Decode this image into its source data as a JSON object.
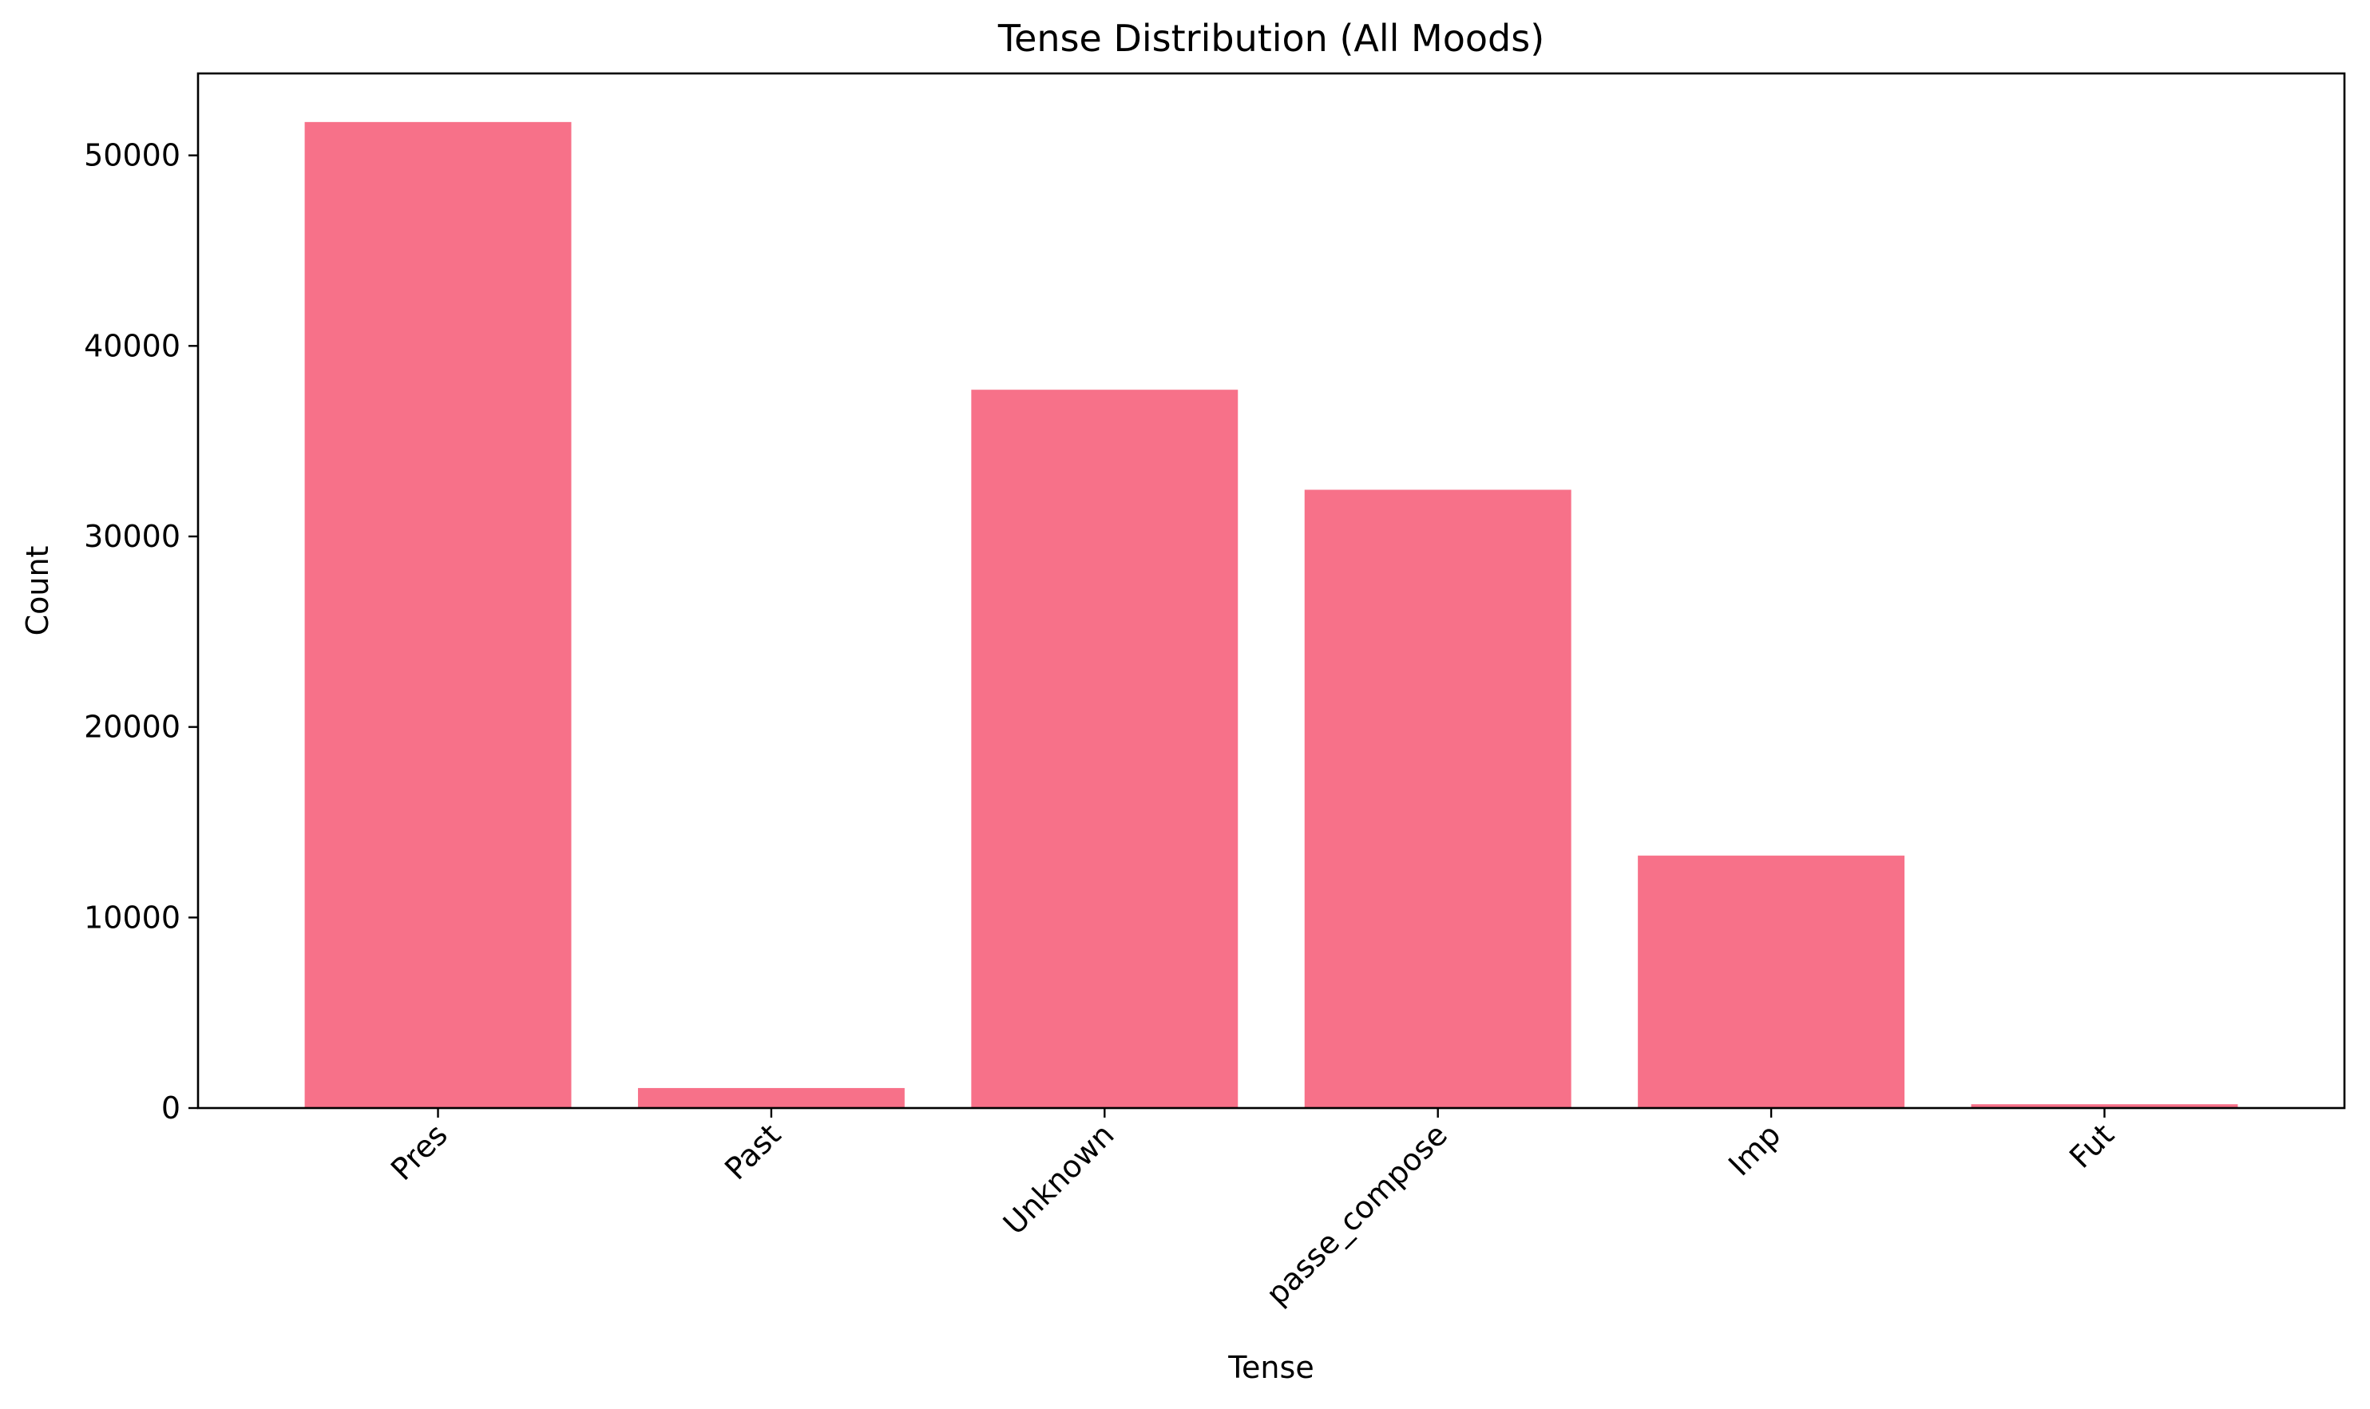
{
  "chart_data": {
    "type": "bar",
    "title": "Tense Distribution (All Moods)",
    "xlabel": "Tense",
    "ylabel": "Count",
    "categories": [
      "Pres",
      "Past",
      "Unknown",
      "passe_compose",
      "Imp",
      "Fut"
    ],
    "values": [
      51750,
      1050,
      37700,
      32450,
      13250,
      200
    ],
    "ylim": [
      0,
      54300
    ],
    "yticks": [
      0,
      10000,
      20000,
      30000,
      40000,
      50000
    ],
    "ytick_labels": [
      "0",
      "10000",
      "20000",
      "30000",
      "40000",
      "50000"
    ],
    "grid": false,
    "legend": "none",
    "bar_color": "#f77189"
  }
}
